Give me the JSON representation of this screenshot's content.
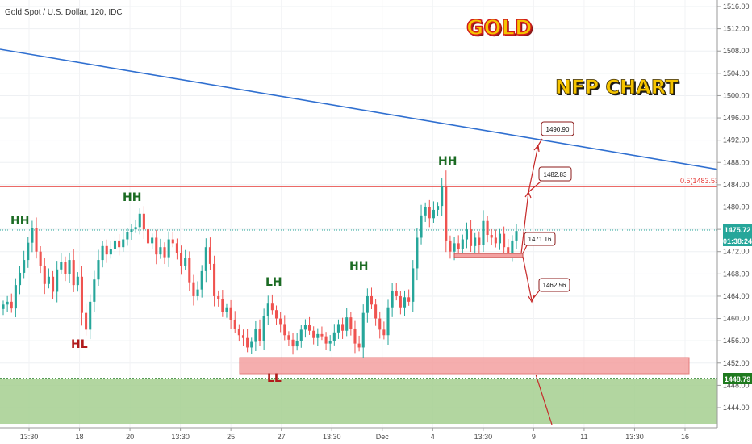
{
  "header": {
    "symbol_text": "Gold Spot / U.S. Dollar, 120, IDC"
  },
  "titles": {
    "main": "GOLD",
    "sub": "NFP CHART"
  },
  "colors": {
    "up": "#26a69a",
    "down": "#ef5350",
    "trendline": "#2f6fd0",
    "resistance": "#e53935",
    "support_zone": "#f28b8b",
    "demand_area": "#a5cf8f",
    "label_green": "#1b6b23",
    "label_red": "#b11b1b",
    "title_yellow": "#f5c400",
    "title_red": "#d11a1a"
  },
  "price_axis": {
    "ticks": [
      "1516.00",
      "1512.00",
      "1508.00",
      "1504.00",
      "1500.00",
      "1496.00",
      "1492.00",
      "1488.00",
      "1484.00",
      "1480.00",
      "1476.00",
      "1472.00",
      "1468.00",
      "1464.00",
      "1460.00",
      "1456.00",
      "1452.00",
      "1448.00",
      "1444.00"
    ],
    "last_price_label": "1475.72",
    "countdown_label": "01:38:24",
    "level_label": "1448.79"
  },
  "time_axis": {
    "ticks": [
      "13:30",
      "18",
      "20",
      "13:30",
      "25",
      "27",
      "13:30",
      "Dec",
      "4",
      "13:30",
      "9",
      "11",
      "13:30",
      "16"
    ]
  },
  "annotations": {
    "structure_labels": [
      {
        "text": "HH",
        "kind": "green"
      },
      {
        "text": "HH",
        "kind": "green"
      },
      {
        "text": "HL",
        "kind": "red"
      },
      {
        "text": "LH",
        "kind": "green"
      },
      {
        "text": "HH",
        "kind": "green"
      },
      {
        "text": "HH",
        "kind": "green"
      },
      {
        "text": "LL",
        "kind": "red"
      }
    ],
    "resistance_label": "0.5(1483.53)",
    "callouts": [
      "1490.90",
      "1482.83",
      "1471.16",
      "1462.56"
    ]
  },
  "chart_data": {
    "type": "candlestick",
    "title": "Gold Spot / U.S. Dollar, 120, IDC",
    "ylim": [
      1441,
      1518
    ],
    "current_price": 1475.72,
    "levels": {
      "resistance": 1483.53,
      "demand_line": 1448.79,
      "support_zone": [
        1450.2,
        1452.8
      ],
      "consolidation_low": 1471.16
    },
    "trendline": {
      "from_price": 1509.0,
      "to_price": 1486.0
    },
    "projections": [
      1490.9,
      1482.83,
      1471.16,
      1462.56
    ],
    "candle_closes": [
      1462.5,
      1463.0,
      1461.8,
      1466.0,
      1468.2,
      1470.5,
      1473.6,
      1476.2,
      1472.0,
      1469.5,
      1466.2,
      1467.5,
      1464.8,
      1468.8,
      1470.2,
      1468.0,
      1470.5,
      1466.0,
      1467.5,
      1461.0,
      1458.0,
      1463.0,
      1467.0,
      1470.5,
      1473.0,
      1471.5,
      1472.5,
      1474.0,
      1472.8,
      1474.2,
      1475.5,
      1476.0,
      1476.4,
      1478.8,
      1476.0,
      1473.5,
      1474.5,
      1471.5,
      1472.8,
      1471.0,
      1474.2,
      1473.5,
      1471.8,
      1469.5,
      1470.8,
      1466.5,
      1464.0,
      1465.2,
      1468.5,
      1472.8,
      1469.8,
      1464.0,
      1463.5,
      1461.2,
      1462.0,
      1459.8,
      1458.2,
      1457.0,
      1456.5,
      1454.8,
      1455.8,
      1458.2,
      1456.0,
      1460.5,
      1462.8,
      1461.5,
      1460.0,
      1459.0,
      1457.0,
      1456.2,
      1455.0,
      1456.0,
      1458.0,
      1458.8,
      1457.8,
      1456.5,
      1457.2,
      1456.8,
      1455.5,
      1456.0,
      1457.5,
      1459.0,
      1457.8,
      1460.2,
      1458.2,
      1455.5,
      1454.8,
      1461.0,
      1464.0,
      1462.5,
      1460.0,
      1458.0,
      1457.0,
      1462.0,
      1465.0,
      1464.0,
      1462.0,
      1463.8,
      1463.0,
      1469.0,
      1474.5,
      1478.5,
      1480.0,
      1478.0,
      1479.5,
      1480.2,
      1483.8,
      1474.0,
      1472.0,
      1473.5,
      1472.5,
      1474.2,
      1476.0,
      1473.0,
      1474.5,
      1473.2,
      1477.5,
      1475.0,
      1474.5,
      1473.5,
      1475.2,
      1472.8,
      1471.6,
      1474.0,
      1475.7
    ]
  }
}
